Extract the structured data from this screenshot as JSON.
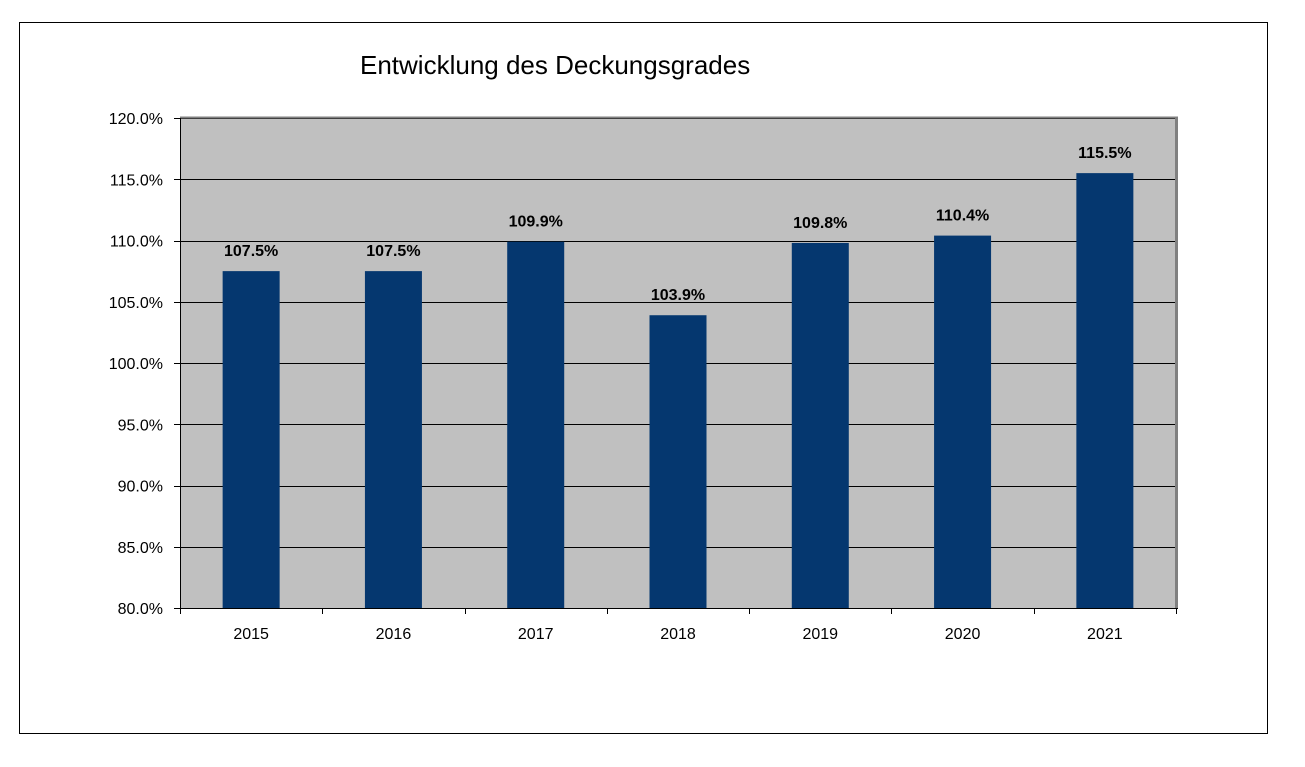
{
  "chart_data": {
    "type": "bar",
    "title": "Entwicklung des Deckungsgrades",
    "xlabel": "",
    "ylabel": "",
    "categories": [
      "2015",
      "2016",
      "2017",
      "2018",
      "2019",
      "2020",
      "2021"
    ],
    "values": [
      107.5,
      107.5,
      109.9,
      103.9,
      109.8,
      110.4,
      115.5
    ],
    "data_labels": [
      "107.5%",
      "107.5%",
      "109.9%",
      "103.9%",
      "109.8%",
      "110.4%",
      "115.5%"
    ],
    "ylim": [
      80,
      120
    ],
    "yticks": [
      80,
      85,
      90,
      95,
      100,
      105,
      110,
      115,
      120
    ],
    "ytick_labels": [
      "80.0%",
      "85.0%",
      "90.0%",
      "95.0%",
      "100.0%",
      "105.0%",
      "110.0%",
      "115.0%",
      "120.0%"
    ],
    "grid": true,
    "legend": "none",
    "colors": {
      "bar": "#05376F",
      "plot_background": "#C0C0C0",
      "gridline": "#000000",
      "axis": "#808080"
    }
  }
}
